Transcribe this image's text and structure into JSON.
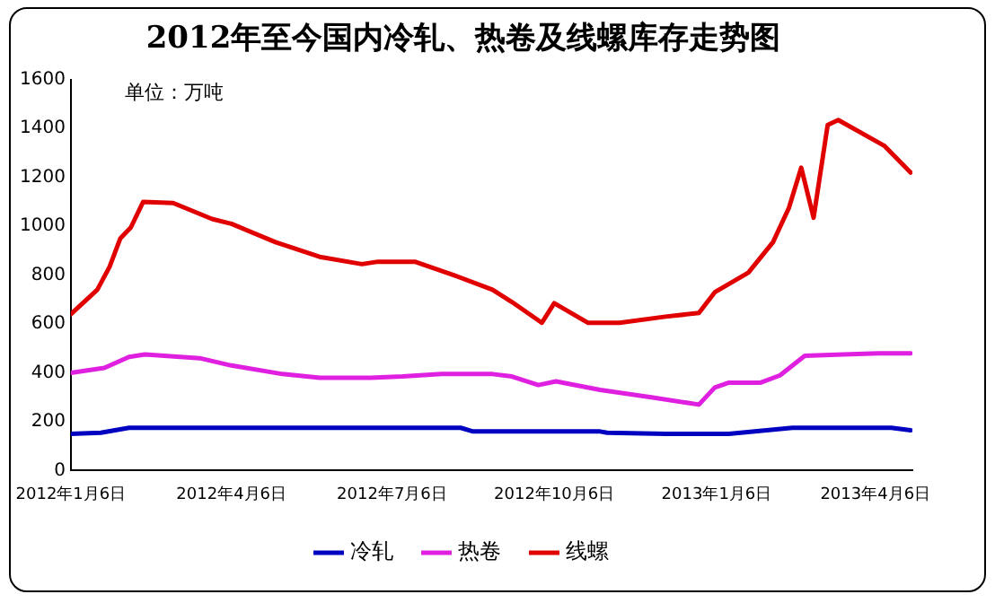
{
  "chart_data": {
    "type": "line",
    "title": "2012年至今国内冷轧、热卷及线螺库存走势图",
    "annotations": [
      "单位：万吨"
    ],
    "xlim": [
      "2012-01-06",
      "2013-04-27"
    ],
    "xticks": [
      {
        "value": "2012-01-06",
        "label": "2012年1月6日"
      },
      {
        "value": "2012-04-06",
        "label": "2012年4月6日"
      },
      {
        "value": "2012-07-06",
        "label": "2012年7月6日"
      },
      {
        "value": "2012-10-06",
        "label": "2012年10月6日"
      },
      {
        "value": "2013-01-06",
        "label": "2013年1月6日"
      },
      {
        "value": "2013-04-06",
        "label": "2013年4月6日"
      }
    ],
    "ylim": [
      0,
      1600
    ],
    "yticks": [
      0,
      200,
      400,
      600,
      800,
      1000,
      1200,
      1400,
      1600
    ],
    "grid": false,
    "legend": "bottom",
    "marker": "none",
    "line_style": "solid",
    "series": [
      {
        "name": "冷轧",
        "color": "#0000c0",
        "x": [
          "2012-01-06",
          "2012-01-23",
          "2012-02-08",
          "2012-08-14",
          "2012-08-21",
          "2012-11-01",
          "2012-11-05",
          "2012-12-08",
          "2013-01-13",
          "2013-02-18",
          "2013-04-15",
          "2013-04-26"
        ],
        "values": [
          150,
          155,
          175,
          175,
          160,
          160,
          155,
          150,
          150,
          175,
          175,
          165
        ]
      },
      {
        "name": "热卷",
        "color": "#e020e0",
        "x": [
          "2012-01-06",
          "2012-01-25",
          "2012-02-08",
          "2012-02-17",
          "2012-03-19",
          "2012-04-06",
          "2012-05-05",
          "2012-05-26",
          "2012-06-24",
          "2012-07-12",
          "2012-08-03",
          "2012-09-01",
          "2012-09-12",
          "2012-09-27",
          "2012-10-07",
          "2012-11-01",
          "2012-11-30",
          "2012-12-27",
          "2013-01-05",
          "2013-01-13",
          "2013-01-31",
          "2013-02-11",
          "2013-02-25",
          "2013-03-19",
          "2013-04-08",
          "2013-04-26"
        ],
        "values": [
          400,
          420,
          465,
          475,
          460,
          430,
          395,
          380,
          380,
          385,
          395,
          395,
          385,
          350,
          365,
          330,
          300,
          270,
          340,
          360,
          360,
          390,
          470,
          475,
          480,
          480
        ]
      },
      {
        "name": "线螺",
        "color": "#e00000",
        "x": [
          "2012-01-06",
          "2012-01-21",
          "2012-01-28",
          "2012-02-03",
          "2012-02-09",
          "2012-02-16",
          "2012-03-04",
          "2012-03-26",
          "2012-04-06",
          "2012-05-01",
          "2012-05-26",
          "2012-06-19",
          "2012-06-28",
          "2012-07-19",
          "2012-08-10",
          "2012-09-01",
          "2012-09-12",
          "2012-09-29",
          "2012-10-06",
          "2012-10-25",
          "2012-11-12",
          "2012-12-08",
          "2012-12-27",
          "2013-01-05",
          "2013-01-24",
          "2013-02-07",
          "2013-02-16",
          "2013-02-23",
          "2013-03-02",
          "2013-03-10",
          "2013-03-16",
          "2013-04-11",
          "2013-04-26"
        ],
        "values": [
          640,
          740,
          835,
          950,
          995,
          1100,
          1095,
          1030,
          1010,
          935,
          875,
          845,
          855,
          855,
          800,
          740,
          690,
          605,
          685,
          605,
          605,
          630,
          645,
          730,
          810,
          935,
          1075,
          1240,
          1035,
          1415,
          1435,
          1330,
          1220
        ]
      }
    ]
  }
}
